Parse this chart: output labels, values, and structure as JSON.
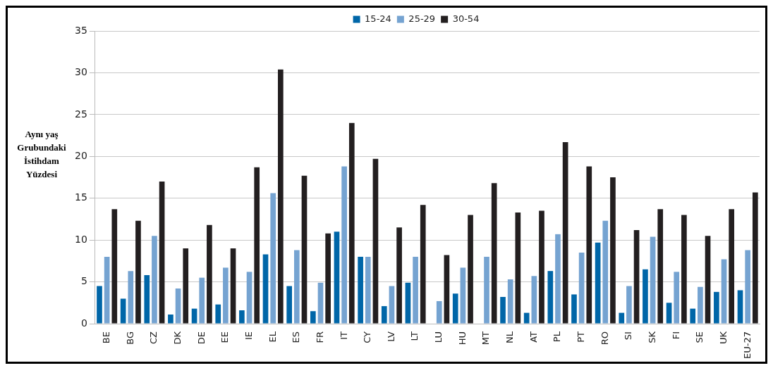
{
  "chart_data": {
    "type": "bar",
    "ylabel": "Aynı yaş Grubundaki İstihdam Yüzdesi",
    "categories": [
      "BE",
      "BG",
      "CZ",
      "DK",
      "DE",
      "EE",
      "IE",
      "EL",
      "ES",
      "FR",
      "IT",
      "CY",
      "LV",
      "LT",
      "LU",
      "HU",
      "MT",
      "NL",
      "AT",
      "PL",
      "PT",
      "RO",
      "SI",
      "SK",
      "FI",
      "SE",
      "UK",
      "EU-27"
    ],
    "series": [
      {
        "name": "15-24",
        "color": "#0066a8",
        "values": [
          4.5,
          3,
          5.8,
          1.1,
          1.8,
          2.3,
          1.6,
          8.3,
          4.5,
          1.5,
          11,
          8,
          2.1,
          4.9,
          null,
          3.6,
          null,
          3.2,
          1.3,
          6.3,
          3.5,
          9.7,
          1.3,
          6.5,
          2.5,
          1.8,
          3.8,
          4
        ]
      },
      {
        "name": "25-29",
        "color": "#75a3d1",
        "values": [
          8,
          6.3,
          10.5,
          4.2,
          5.5,
          6.7,
          6.2,
          15.6,
          8.8,
          4.9,
          18.8,
          8,
          4.5,
          8,
          2.7,
          6.7,
          8,
          5.3,
          5.7,
          10.7,
          8.5,
          12.3,
          4.5,
          10.4,
          6.2,
          4.4,
          7.7,
          8.8
        ]
      },
      {
        "name": "30-54",
        "color": "#231f20",
        "values": [
          13.7,
          12.3,
          17,
          9,
          11.8,
          9,
          18.7,
          30.4,
          17.7,
          10.8,
          24,
          19.7,
          11.5,
          14.2,
          8.2,
          13,
          16.8,
          13.3,
          13.5,
          21.7,
          18.8,
          17.5,
          11.2,
          13.7,
          13,
          10.5,
          13.7,
          15.7
        ]
      }
    ],
    "ylim": [
      0,
      35
    ],
    "yticks": [
      0,
      5,
      10,
      15,
      20,
      25,
      30,
      35
    ],
    "grid": "y",
    "legend": "top"
  }
}
